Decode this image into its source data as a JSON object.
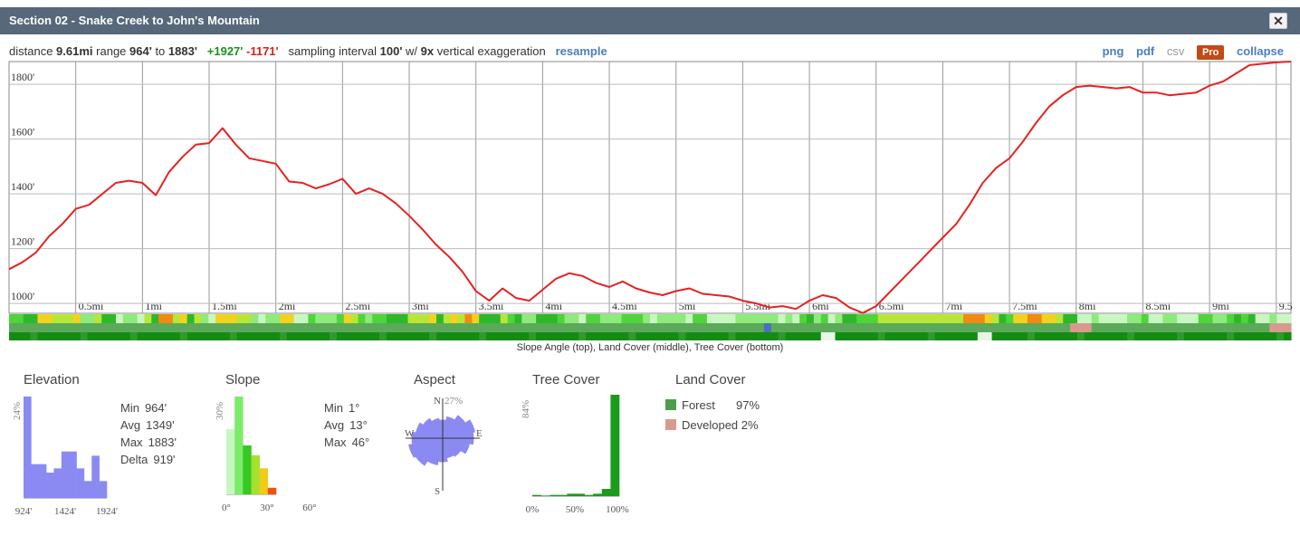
{
  "window": {
    "title": "Section 02 - Snake Creek to John's Mountain",
    "close_label": "✕"
  },
  "info": {
    "distance_label": "distance",
    "distance_value": "9.61mi",
    "range_label": "range",
    "range_min": "964'",
    "range_to": "to",
    "range_max": "1883'",
    "gain": "+1927'",
    "loss": "-1171'",
    "sampling_label": "sampling interval",
    "sampling_value": "100'",
    "sampling_with": "w/",
    "exaggeration_value": "9x",
    "exaggeration_label": "vertical exaggeration",
    "resample_label": "resample"
  },
  "actions": {
    "png": "png",
    "pdf": "pdf",
    "csv": "csv",
    "pro": "Pro",
    "collapse": "collapse"
  },
  "colors": {
    "profile_line": "#e52222",
    "histogram_blue": "#8a8af2",
    "forest": "#4c9e4c",
    "developed": "#d99a8e"
  },
  "chart_data": [
    {
      "type": "line",
      "x": [
        0,
        0.1,
        0.2,
        0.3,
        0.4,
        0.5,
        0.6,
        0.7,
        0.8,
        0.9,
        1.0,
        1.1,
        1.2,
        1.3,
        1.4,
        1.5,
        1.6,
        1.7,
        1.8,
        1.9,
        2.0,
        2.1,
        2.2,
        2.3,
        2.4,
        2.5,
        2.6,
        2.7,
        2.8,
        2.9,
        3.0,
        3.1,
        3.2,
        3.3,
        3.4,
        3.5,
        3.6,
        3.7,
        3.8,
        3.9,
        4.0,
        4.1,
        4.2,
        4.3,
        4.4,
        4.5,
        4.6,
        4.7,
        4.8,
        4.9,
        5.0,
        5.1,
        5.2,
        5.3,
        5.4,
        5.5,
        5.6,
        5.7,
        5.8,
        5.9,
        6.0,
        6.1,
        6.2,
        6.3,
        6.4,
        6.5,
        6.6,
        6.7,
        6.8,
        6.9,
        7.0,
        7.1,
        7.2,
        7.3,
        7.4,
        7.5,
        7.6,
        7.7,
        7.8,
        7.9,
        8.0,
        8.1,
        8.2,
        8.3,
        8.4,
        8.5,
        8.6,
        8.7,
        8.8,
        8.9,
        9.0,
        9.1,
        9.2,
        9.3,
        9.4,
        9.5,
        9.61
      ],
      "y": [
        1125,
        1150,
        1185,
        1245,
        1290,
        1345,
        1360,
        1400,
        1440,
        1448,
        1440,
        1395,
        1480,
        1535,
        1580,
        1585,
        1640,
        1580,
        1530,
        1520,
        1510,
        1445,
        1440,
        1420,
        1435,
        1455,
        1400,
        1420,
        1400,
        1365,
        1320,
        1270,
        1215,
        1170,
        1115,
        1045,
        1010,
        1055,
        1020,
        1010,
        1050,
        1090,
        1110,
        1100,
        1075,
        1060,
        1080,
        1055,
        1040,
        1030,
        1045,
        1055,
        1035,
        1030,
        1025,
        1010,
        1000,
        985,
        990,
        980,
        1010,
        1030,
        1020,
        985,
        965,
        990,
        1040,
        1090,
        1140,
        1190,
        1240,
        1290,
        1360,
        1440,
        1495,
        1530,
        1590,
        1660,
        1720,
        1760,
        1790,
        1795,
        1790,
        1785,
        1790,
        1770,
        1770,
        1760,
        1765,
        1770,
        1795,
        1810,
        1840,
        1870,
        1875,
        1880,
        1883
      ],
      "xlabel": "",
      "ylabel": "",
      "ylim": [
        964,
        1883
      ],
      "xlim": [
        0,
        9.61
      ],
      "x_ticks": [
        "0.5mi",
        "1mi",
        "1.5mi",
        "2mi",
        "2.5mi",
        "3mi",
        "3.5mi",
        "4mi",
        "4.5mi",
        "5mi",
        "5.5mi",
        "6mi",
        "6.5mi",
        "7mi",
        "7.5mi",
        "8mi",
        "8.5mi",
        "9mi",
        "9.5"
      ],
      "y_ticks": [
        "1000'",
        "1200'",
        "1400'",
        "1600'",
        "1800'"
      ],
      "grid": true
    },
    {
      "type": "bar",
      "title": "Elevation",
      "max_label": "24%",
      "x_ticks": [
        "924'",
        "1424'",
        "1924'"
      ],
      "values": [
        24,
        8,
        8,
        6,
        7,
        11,
        11,
        7,
        4,
        10,
        4
      ],
      "stats": [
        {
          "label": "Min",
          "value": "964'"
        },
        {
          "label": "Avg",
          "value": "1349'"
        },
        {
          "label": "Max",
          "value": "1883'"
        },
        {
          "label": "Delta",
          "value": "919'"
        }
      ]
    },
    {
      "type": "bar",
      "title": "Slope",
      "max_label": "30%",
      "x_ticks": [
        "0°",
        "30°",
        "60°"
      ],
      "values": [
        20,
        30,
        15,
        12,
        8,
        2
      ],
      "bar_colors": [
        "#c6f7c0",
        "#7deb6a",
        "#35c922",
        "#a6e030",
        "#f0cc18",
        "#f05010"
      ],
      "stats": [
        {
          "label": "Min",
          "value": "1°"
        },
        {
          "label": "Avg",
          "value": "13°"
        },
        {
          "label": "Max",
          "value": "46°"
        }
      ]
    },
    {
      "type": "pie",
      "title": "Aspect",
      "max_label": "27%",
      "directions": {
        "n": "N",
        "e": "E",
        "s": "S",
        "w": "W"
      }
    },
    {
      "type": "bar",
      "title": "Tree Cover",
      "max_label": "84%",
      "x_ticks": [
        "0%",
        "50%",
        "100%"
      ],
      "values": [
        1,
        0.5,
        1,
        1,
        2,
        2,
        1,
        2,
        6,
        84
      ]
    }
  ],
  "land_cover": {
    "title": "Land Cover",
    "items": [
      {
        "label": "Forest",
        "value": "97%",
        "color": "#4c9e4c"
      },
      {
        "label": "Developed",
        "value": "2%",
        "color": "#d99a8e"
      }
    ]
  },
  "bands_caption": "Slope Angle (top), Land Cover (middle), Tree Cover (bottom)"
}
